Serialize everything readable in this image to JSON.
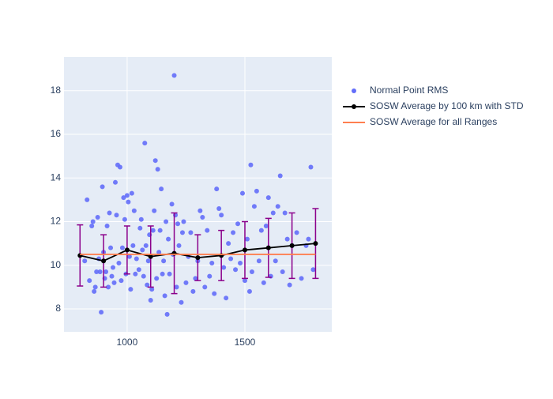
{
  "chart_data": {
    "type": "scatter",
    "xlim": [
      732,
      1869
    ],
    "xticks": [
      1000,
      1500
    ],
    "ylim": [
      6.95,
      19.55
    ],
    "yticks": [
      8,
      10,
      12,
      14,
      16,
      18
    ],
    "grid": true,
    "legend_position": "right",
    "series": [
      {
        "name": "Normal Point RMS",
        "type": "scatter",
        "color": "#636efa",
        "x": [
          820,
          830,
          840,
          850,
          855,
          860,
          865,
          870,
          875,
          880,
          885,
          890,
          895,
          900,
          905,
          910,
          915,
          920,
          925,
          930,
          935,
          940,
          945,
          950,
          955,
          960,
          965,
          970,
          975,
          980,
          985,
          990,
          995,
          1000,
          1005,
          1010,
          1015,
          1020,
          1025,
          1030,
          1035,
          1040,
          1050,
          1055,
          1060,
          1065,
          1070,
          1075,
          1080,
          1085,
          1090,
          1095,
          1100,
          1105,
          1110,
          1115,
          1120,
          1125,
          1130,
          1135,
          1140,
          1145,
          1150,
          1155,
          1160,
          1165,
          1170,
          1175,
          1180,
          1190,
          1195,
          1200,
          1205,
          1210,
          1215,
          1220,
          1230,
          1235,
          1240,
          1250,
          1260,
          1270,
          1280,
          1290,
          1300,
          1310,
          1320,
          1330,
          1340,
          1350,
          1360,
          1370,
          1380,
          1390,
          1400,
          1410,
          1420,
          1430,
          1440,
          1450,
          1460,
          1470,
          1480,
          1490,
          1500,
          1510,
          1520,
          1525,
          1530,
          1540,
          1550,
          1560,
          1570,
          1580,
          1590,
          1600,
          1610,
          1620,
          1630,
          1640,
          1650,
          1660,
          1670,
          1680,
          1690,
          1700,
          1720,
          1740,
          1760,
          1770,
          1780,
          1790
        ],
        "values": [
          10.2,
          13.0,
          9.3,
          11.8,
          12.0,
          8.8,
          9.0,
          9.7,
          12.2,
          10.3,
          9.7,
          7.85,
          13.6,
          10.6,
          9.4,
          9.7,
          11.8,
          9.0,
          12.4,
          10.8,
          9.5,
          9.9,
          9.2,
          13.8,
          12.3,
          14.6,
          10.1,
          14.5,
          9.3,
          10.8,
          13.1,
          12.1,
          9.6,
          13.2,
          12.9,
          10.4,
          8.9,
          13.3,
          10.9,
          12.5,
          9.6,
          10.3,
          9.8,
          11.7,
          12.1,
          10.7,
          9.5,
          15.6,
          10.9,
          9.1,
          10.2,
          11.4,
          8.4,
          8.9,
          11.6,
          12.5,
          14.8,
          9.4,
          14.4,
          10.6,
          11.6,
          13.5,
          9.6,
          10.2,
          8.6,
          12.0,
          7.75,
          11.2,
          9.6,
          12.8,
          10.5,
          18.7,
          12.3,
          9.0,
          11.9,
          10.9,
          8.3,
          11.5,
          12.0,
          9.2,
          10.4,
          11.5,
          8.8,
          9.4,
          10.2,
          12.5,
          12.2,
          9.0,
          11.6,
          9.5,
          10.1,
          8.7,
          13.5,
          12.6,
          12.3,
          9.9,
          8.5,
          11.0,
          10.3,
          11.5,
          9.8,
          11.9,
          10.1,
          13.3,
          9.3,
          11.2,
          8.8,
          14.6,
          9.7,
          12.7,
          13.4,
          10.2,
          11.6,
          9.2,
          11.8,
          13.1,
          9.5,
          12.4,
          10.2,
          12.7,
          14.1,
          9.7,
          12.4,
          11.2,
          9.1,
          10.9,
          11.5,
          9.4,
          10.9,
          11.2,
          14.5,
          9.8
        ]
      },
      {
        "name": "SOSW Average by 100 km with STD",
        "type": "line",
        "color": "#000000",
        "x": [
          800,
          900,
          1000,
          1100,
          1200,
          1300,
          1400,
          1500,
          1600,
          1700,
          1800
        ],
        "values": [
          10.45,
          10.2,
          10.7,
          10.4,
          10.55,
          10.35,
          10.45,
          10.7,
          10.8,
          10.9,
          11.0
        ],
        "errors": [
          1.4,
          1.2,
          1.1,
          1.4,
          1.85,
          1.05,
          1.15,
          1.3,
          1.35,
          1.5,
          1.6
        ],
        "error_color": "#8b008b"
      },
      {
        "name": "SOSW Average for all Ranges",
        "type": "line",
        "color": "#ff7f50",
        "x": [
          800,
          1800
        ],
        "values": [
          10.5,
          10.5
        ]
      }
    ]
  }
}
